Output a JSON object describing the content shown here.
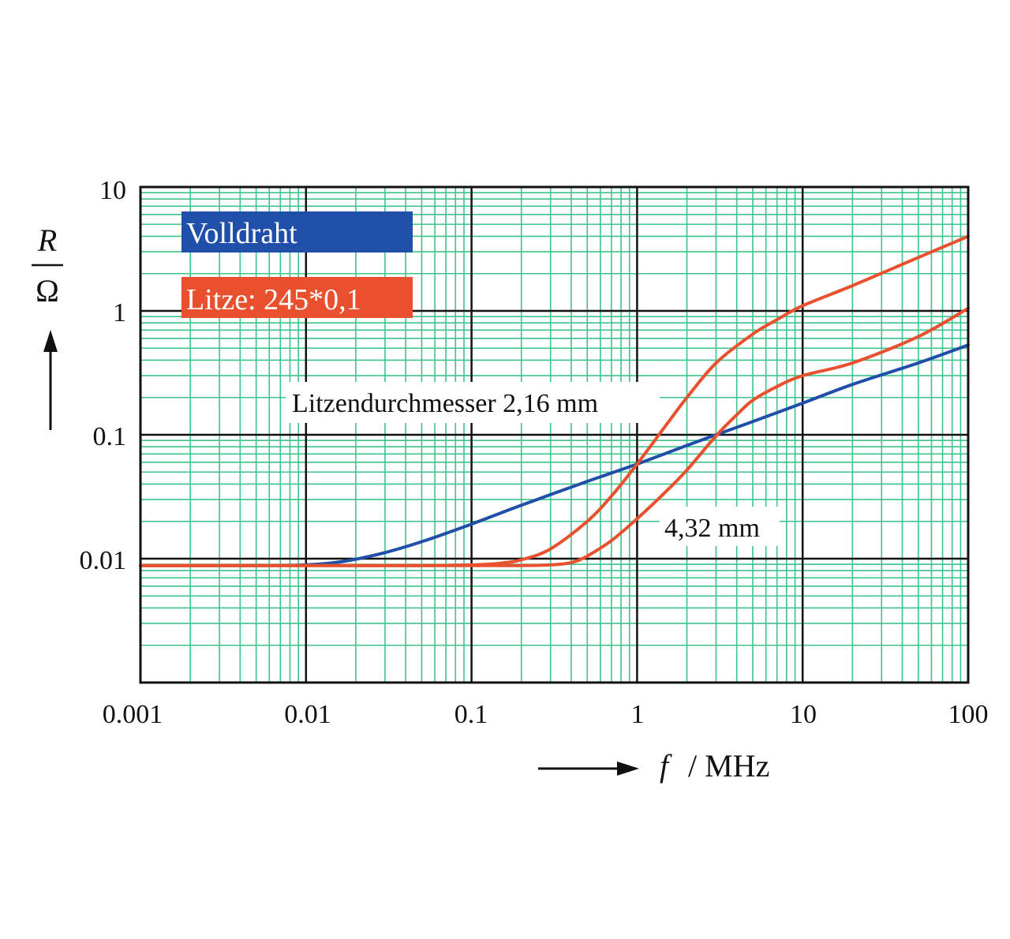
{
  "colors": {
    "grid_minor": "#3cc48c",
    "grid_major": "#111111",
    "volldraht": "#1f4fa8",
    "litze": "#e8502e",
    "legend_volldraht_bg": "#1f4fa8",
    "legend_litze_bg": "#e8502e"
  },
  "chart_data": {
    "type": "line",
    "x_scale": "log",
    "y_scale": "log",
    "xlim": [
      0.001,
      100
    ],
    "ylim": [
      0.001,
      10
    ],
    "grid": true,
    "x_ticks": [
      "0.001",
      "0.01",
      "0.1",
      "1",
      "10",
      "100"
    ],
    "y_ticks": [
      "0.01",
      "0.1",
      "1",
      "10"
    ],
    "xlabel": {
      "symbol": "f",
      "unit": "/ MHz"
    },
    "ylabel": {
      "numerator": "R",
      "denominator": "Ω"
    },
    "legend": [
      {
        "label": "Volldraht",
        "color": "#1f4fa8"
      },
      {
        "label": "Litze: 245*0,1",
        "color": "#e8502e"
      }
    ],
    "annotations": [
      {
        "text": "Litzendurchmesser 2,16 mm"
      },
      {
        "text": "4,32 mm"
      }
    ],
    "series": [
      {
        "color": "#1f4fa8",
        "x": [
          0.001,
          0.005,
          0.01,
          0.015,
          0.02,
          0.03,
          0.05,
          0.1,
          0.2,
          0.5,
          1,
          2,
          3,
          5,
          10,
          20,
          50,
          100
        ],
        "y": [
          0.0088,
          0.0088,
          0.0089,
          0.0093,
          0.0099,
          0.0112,
          0.0137,
          0.019,
          0.027,
          0.042,
          0.058,
          0.082,
          0.1,
          0.128,
          0.18,
          0.255,
          0.38,
          0.53
        ]
      },
      {
        "color": "#e8502e",
        "x": [
          0.001,
          0.01,
          0.05,
          0.1,
          0.15,
          0.2,
          0.3,
          0.5,
          0.7,
          1,
          1.5,
          2,
          3,
          5,
          7,
          10,
          20,
          50,
          100
        ],
        "y": [
          0.0088,
          0.0088,
          0.0088,
          0.0089,
          0.0092,
          0.0098,
          0.012,
          0.02,
          0.032,
          0.058,
          0.12,
          0.2,
          0.38,
          0.65,
          0.85,
          1.1,
          1.6,
          2.7,
          4.0
        ]
      },
      {
        "color": "#e8502e",
        "x": [
          0.001,
          0.01,
          0.1,
          0.2,
          0.3,
          0.4,
          0.5,
          0.7,
          1,
          1.5,
          2,
          3,
          4,
          5,
          7,
          10,
          20,
          50,
          100
        ],
        "y": [
          0.0088,
          0.0088,
          0.0088,
          0.0088,
          0.0089,
          0.0093,
          0.0105,
          0.014,
          0.021,
          0.035,
          0.052,
          0.098,
          0.145,
          0.19,
          0.245,
          0.3,
          0.38,
          0.62,
          1.05
        ]
      }
    ]
  }
}
